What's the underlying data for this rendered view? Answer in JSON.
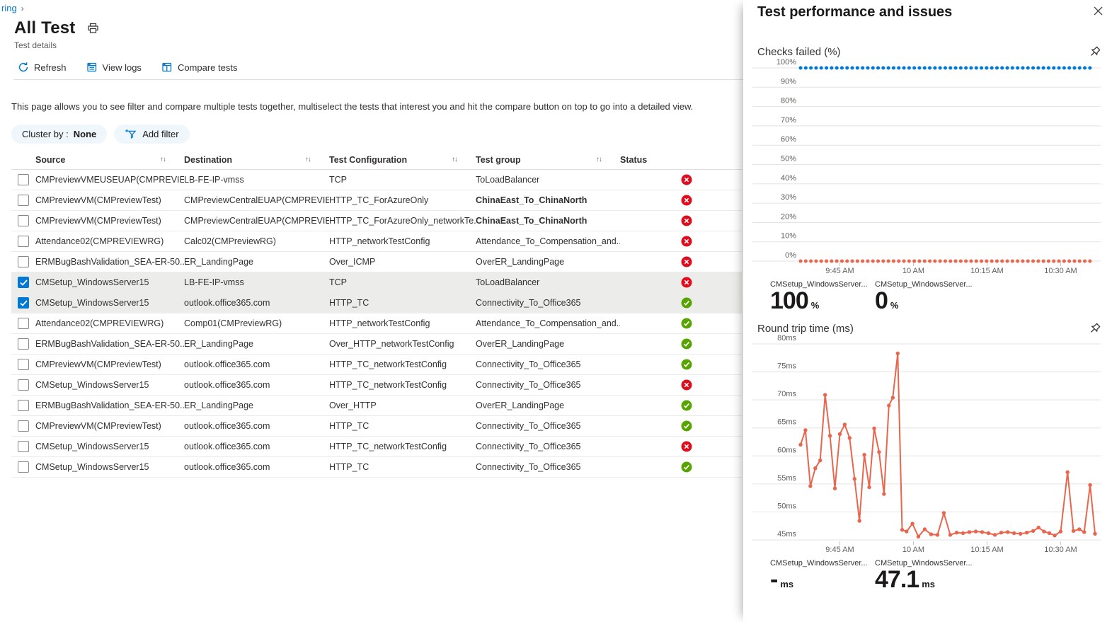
{
  "breadcrumb": {
    "trail": "ring",
    "chevron": "›"
  },
  "header": {
    "title": "All Test",
    "subtitle": "Test details"
  },
  "toolbar": {
    "refresh": "Refresh",
    "view_logs": "View logs",
    "compare_tests": "Compare tests"
  },
  "description": "This page allows you to see filter and compare multiple tests together, multiselect the tests that interest you and hit the compare button on top to go into a detailed view.",
  "filters": {
    "cluster_by_label": "Cluster by :",
    "cluster_by_value": "None",
    "add_filter_label": "Add filter"
  },
  "table": {
    "columns": [
      "Source",
      "Destination",
      "Test Configuration",
      "Test group",
      "Status"
    ],
    "sort_glyph": "↑↓",
    "rows": [
      {
        "source": "CMPreviewVMEUSEUAP(CMPREVIE...",
        "destination": "LB-FE-IP-vmss",
        "config": "TCP",
        "group": "ToLoadBalancer",
        "group_bold": false,
        "status": "fail",
        "checked": false
      },
      {
        "source": "CMPreviewVM(CMPreviewTest)",
        "destination": "CMPreviewCentralEUAP(CMPREVIE...",
        "config": "HTTP_TC_ForAzureOnly",
        "group": "ChinaEast_To_ChinaNorth",
        "group_bold": true,
        "status": "fail",
        "checked": false
      },
      {
        "source": "CMPreviewVM(CMPreviewTest)",
        "destination": "CMPreviewCentralEUAP(CMPREVIE...",
        "config": "HTTP_TC_ForAzureOnly_networkTe...",
        "group": "ChinaEast_To_ChinaNorth",
        "group_bold": true,
        "status": "fail",
        "checked": false
      },
      {
        "source": "Attendance02(CMPREVIEWRG)",
        "destination": "Calc02(CMPreviewRG)",
        "config": "HTTP_networkTestConfig",
        "group": "Attendance_To_Compensation_and...",
        "group_bold": false,
        "status": "fail",
        "checked": false
      },
      {
        "source": "ERMBugBashValidation_SEA-ER-50...",
        "destination": "ER_LandingPage",
        "config": "Over_ICMP",
        "group": "OverER_LandingPage",
        "group_bold": false,
        "status": "fail",
        "checked": false
      },
      {
        "source": "CMSetup_WindowsServer15",
        "destination": "LB-FE-IP-vmss",
        "config": "TCP",
        "group": "ToLoadBalancer",
        "group_bold": false,
        "status": "fail",
        "checked": true
      },
      {
        "source": "CMSetup_WindowsServer15",
        "destination": "outlook.office365.com",
        "config": "HTTP_TC",
        "group": "Connectivity_To_Office365",
        "group_bold": false,
        "status": "pass",
        "checked": true
      },
      {
        "source": "Attendance02(CMPREVIEWRG)",
        "destination": "Comp01(CMPreviewRG)",
        "config": "HTTP_networkTestConfig",
        "group": "Attendance_To_Compensation_and...",
        "group_bold": false,
        "status": "pass",
        "checked": false
      },
      {
        "source": "ERMBugBashValidation_SEA-ER-50...",
        "destination": "ER_LandingPage",
        "config": "Over_HTTP_networkTestConfig",
        "group": "OverER_LandingPage",
        "group_bold": false,
        "status": "pass",
        "checked": false
      },
      {
        "source": "CMPreviewVM(CMPreviewTest)",
        "destination": "outlook.office365.com",
        "config": "HTTP_TC_networkTestConfig",
        "group": "Connectivity_To_Office365",
        "group_bold": false,
        "status": "pass",
        "checked": false
      },
      {
        "source": "CMSetup_WindowsServer15",
        "destination": "outlook.office365.com",
        "config": "HTTP_TC_networkTestConfig",
        "group": "Connectivity_To_Office365",
        "group_bold": false,
        "status": "fail",
        "checked": false
      },
      {
        "source": "ERMBugBashValidation_SEA-ER-50...",
        "destination": "ER_LandingPage",
        "config": "Over_HTTP",
        "group": "OverER_LandingPage",
        "group_bold": false,
        "status": "pass",
        "checked": false
      },
      {
        "source": "CMPreviewVM(CMPreviewTest)",
        "destination": "outlook.office365.com",
        "config": "HTTP_TC",
        "group": "Connectivity_To_Office365",
        "group_bold": false,
        "status": "pass",
        "checked": false
      },
      {
        "source": "CMSetup_WindowsServer15",
        "destination": "outlook.office365.com",
        "config": "HTTP_TC_networkTestConfig",
        "group": "Connectivity_To_Office365",
        "group_bold": false,
        "status": "fail",
        "checked": false
      },
      {
        "source": "CMSetup_WindowsServer15",
        "destination": "outlook.office365.com",
        "config": "HTTP_TC",
        "group": "Connectivity_To_Office365",
        "group_bold": false,
        "status": "pass",
        "checked": false
      }
    ]
  },
  "panel": {
    "title": "Test performance and issues"
  },
  "colors": {
    "accent_blue": "#0078d4",
    "series_red": "#e8664d",
    "status_fail": "#e00b1c",
    "status_pass": "#57a300"
  },
  "chart_data": [
    {
      "type": "line",
      "title": "Checks failed (%)",
      "ylabel": "%",
      "ylim": [
        0,
        100
      ],
      "yticks": [
        {
          "v": 100,
          "label": "100%"
        },
        {
          "v": 90,
          "label": "90%"
        },
        {
          "v": 80,
          "label": "80%"
        },
        {
          "v": 70,
          "label": "70%"
        },
        {
          "v": 60,
          "label": "60%"
        },
        {
          "v": 50,
          "label": "50%"
        },
        {
          "v": 40,
          "label": "40%"
        },
        {
          "v": 30,
          "label": "30%"
        },
        {
          "v": 20,
          "label": "20%"
        },
        {
          "v": 10,
          "label": "10%"
        },
        {
          "v": 0,
          "label": "0%"
        }
      ],
      "x_axis": {
        "t_start": 7,
        "t_end": 67,
        "ticks": [
          {
            "t": 15,
            "label": "9:45 AM"
          },
          {
            "t": 30,
            "label": "10 AM"
          },
          {
            "t": 45,
            "label": "10:15 AM"
          },
          {
            "t": 60,
            "label": "10:30 AM"
          }
        ]
      },
      "series": [
        {
          "name": "CMSetup_WindowsServer...",
          "color": "#0078d4",
          "style": "dotted",
          "points": [
            [
              7,
              100
            ],
            [
              67,
              100
            ]
          ]
        },
        {
          "name": "CMSetup_WindowsServer...",
          "color": "#e8664d",
          "style": "dotted",
          "points": [
            [
              7,
              0
            ],
            [
              67,
              0
            ]
          ]
        }
      ],
      "legend": [
        {
          "name": "CMSetup_WindowsServer...",
          "value": "100",
          "unit": "%",
          "color": "#0078d4"
        },
        {
          "name": "CMSetup_WindowsServer...",
          "value": "0",
          "unit": "%",
          "color": "#e8664d"
        }
      ]
    },
    {
      "type": "line",
      "title": "Round trip time (ms)",
      "ylabel": "ms",
      "ylim": [
        45,
        80
      ],
      "yticks": [
        {
          "v": 80,
          "label": "80ms"
        },
        {
          "v": 75,
          "label": "75ms"
        },
        {
          "v": 70,
          "label": "70ms"
        },
        {
          "v": 65,
          "label": "65ms"
        },
        {
          "v": 60,
          "label": "60ms"
        },
        {
          "v": 55,
          "label": "55ms"
        },
        {
          "v": 50,
          "label": "50ms"
        },
        {
          "v": 45,
          "label": "45ms"
        }
      ],
      "x_axis": {
        "t_start": 7,
        "t_end": 67,
        "ticks": [
          {
            "t": 15,
            "label": "9:45 AM"
          },
          {
            "t": 30,
            "label": "10 AM"
          },
          {
            "t": 45,
            "label": "10:15 AM"
          },
          {
            "t": 60,
            "label": "10:30 AM"
          }
        ]
      },
      "series": [
        {
          "name": "CMSetup_WindowsServer...",
          "color": "#e8664d",
          "style": "line-markers",
          "points": [
            [
              7,
              62
            ],
            [
              8,
              64.6
            ],
            [
              9,
              54.6
            ],
            [
              10,
              57.8
            ],
            [
              11,
              59.2
            ],
            [
              12,
              70.9
            ],
            [
              13,
              63.6
            ],
            [
              14,
              54.2
            ],
            [
              15,
              63.9
            ],
            [
              16,
              65.6
            ],
            [
              17,
              63.2
            ],
            [
              18,
              55.9
            ],
            [
              19,
              48.4
            ],
            [
              20,
              60.2
            ],
            [
              21,
              54.4
            ],
            [
              22,
              64.9
            ],
            [
              23,
              60.7
            ],
            [
              24,
              53.2
            ],
            [
              25,
              69
            ],
            [
              25.8,
              70.4
            ],
            [
              26.8,
              78.3
            ],
            [
              27.7,
              46.8
            ],
            [
              28.6,
              46.5
            ],
            [
              29.8,
              47.9
            ],
            [
              31,
              45.6
            ],
            [
              32.3,
              46.9
            ],
            [
              33.6,
              46
            ],
            [
              34.9,
              45.9
            ],
            [
              36.2,
              49.8
            ],
            [
              37.5,
              45.9
            ],
            [
              38.8,
              46.3
            ],
            [
              40.1,
              46.2
            ],
            [
              41.4,
              46.4
            ],
            [
              42.7,
              46.5
            ],
            [
              44,
              46.4
            ],
            [
              45.3,
              46.2
            ],
            [
              46.6,
              45.9
            ],
            [
              47.9,
              46.3
            ],
            [
              49.2,
              46.4
            ],
            [
              50.5,
              46.2
            ],
            [
              51.8,
              46.1
            ],
            [
              53.1,
              46.3
            ],
            [
              54.4,
              46.6
            ],
            [
              55.5,
              47.2
            ],
            [
              56.6,
              46.5
            ],
            [
              57.7,
              46.2
            ],
            [
              58.8,
              45.8
            ],
            [
              60,
              46.5
            ],
            [
              61.4,
              57.1
            ],
            [
              62.6,
              46.6
            ],
            [
              63.8,
              46.9
            ],
            [
              64.8,
              46.4
            ],
            [
              66,
              54.8
            ],
            [
              67,
              46.1
            ]
          ]
        }
      ],
      "legend": [
        {
          "name": "CMSetup_WindowsServer...",
          "value": "-",
          "unit": "ms",
          "color": "#0078d4"
        },
        {
          "name": "CMSetup_WindowsServer...",
          "value": "47.1",
          "unit": "ms",
          "color": "#e8664d"
        }
      ]
    }
  ]
}
